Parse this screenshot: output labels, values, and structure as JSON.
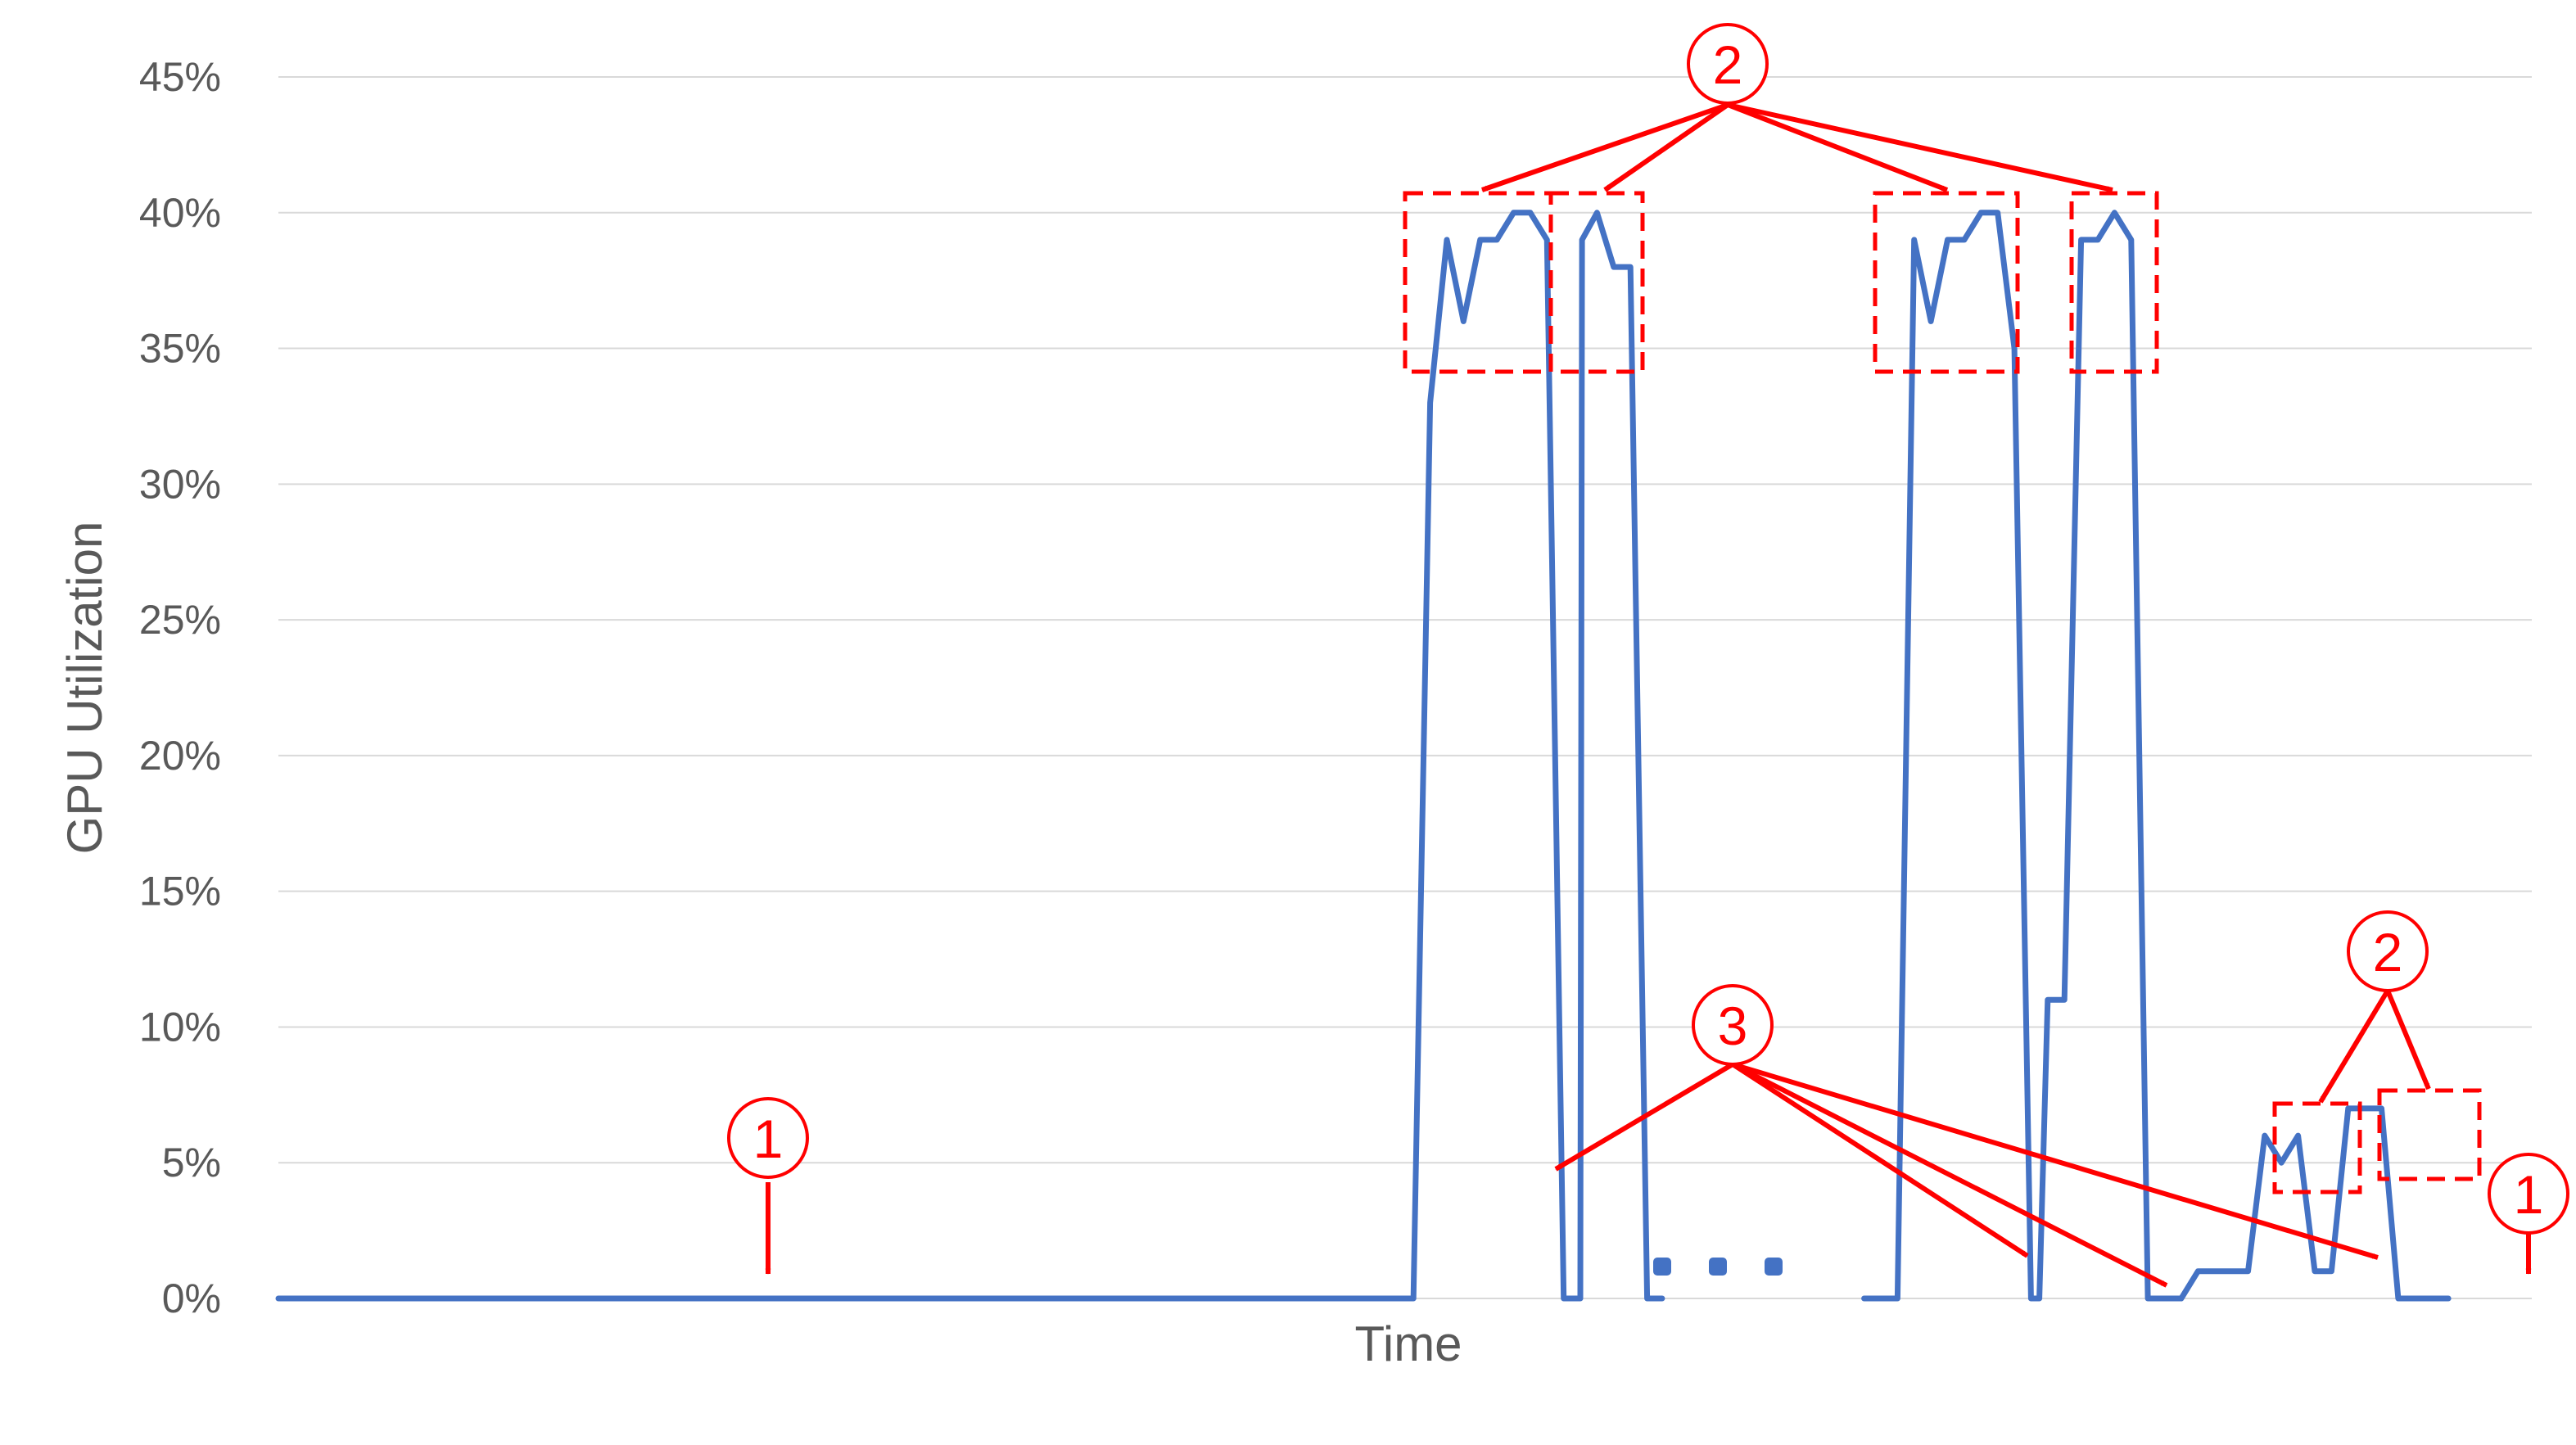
{
  "chart_data": {
    "type": "line",
    "xlabel": "Time",
    "ylabel": "GPU Utilization",
    "ylim": [
      0,
      45
    ],
    "y_ticks": [
      "0%",
      "5%",
      "10%",
      "15%",
      "20%",
      "25%",
      "30%",
      "35%",
      "40%",
      "45%"
    ],
    "grid": true,
    "gap_marker": "...",
    "series": [
      {
        "color": "#4472c4",
        "segments": [
          {
            "t": [
              0,
              68,
              69,
              70,
              71,
              72,
              73,
              74,
              75,
              76,
              77,
              78,
              78.1,
              79,
              80,
              81,
              82,
              82.9
            ],
            "y": [
              0,
              0,
              33,
              39,
              36,
              39,
              39,
              40,
              40,
              39,
              0,
              0,
              39,
              40,
              38,
              38,
              0,
              0
            ]
          },
          {
            "t": [
              95,
              97,
              98,
              99,
              100,
              101,
              102,
              103,
              104,
              105,
              105.5,
              106,
              107,
              108,
              109,
              110,
              111,
              112,
              113,
              114,
              115,
              116,
              117,
              118,
              119,
              120,
              121,
              122,
              123,
              124,
              125,
              126,
              127,
              128,
              129,
              130
            ],
            "y": [
              0,
              0,
              39,
              36,
              39,
              39,
              40,
              40,
              35,
              0,
              0,
              11,
              11,
              39,
              39,
              40,
              39,
              0,
              0,
              0,
              1,
              1,
              1,
              1,
              6,
              5,
              6,
              1,
              1,
              7,
              7,
              7,
              0,
              0,
              0,
              0
            ]
          }
        ]
      }
    ],
    "annotations": [
      {
        "label": "1",
        "type": "arrow"
      },
      {
        "label": "1",
        "type": "arrow"
      },
      {
        "label": "2",
        "type": "arrows-to-boxes"
      },
      {
        "label": "2",
        "type": "arrows-to-boxes"
      },
      {
        "label": "3",
        "type": "arrows"
      }
    ]
  }
}
